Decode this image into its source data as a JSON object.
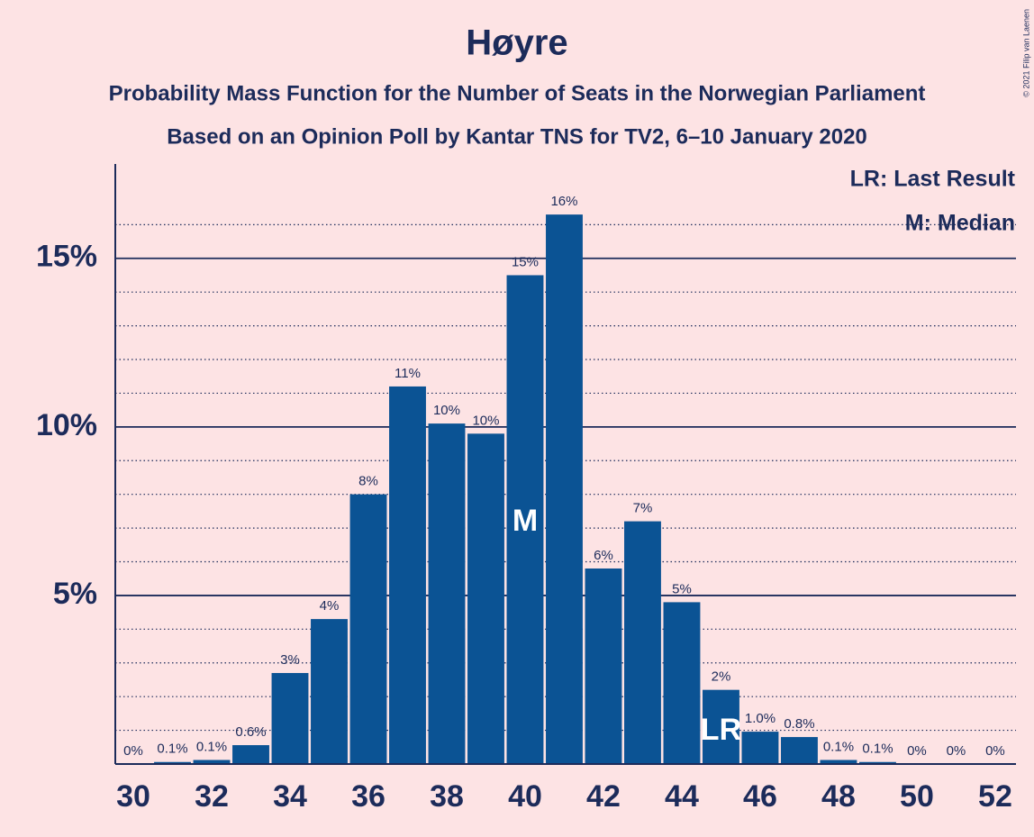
{
  "chart_data": {
    "type": "bar",
    "title": "Høyre",
    "subtitle": [
      "Probability Mass Function for the Number of Seats in the Norwegian Parliament",
      "Based on an Opinion Poll by Kantar TNS for TV2, 6–10 January 2020"
    ],
    "copyright": "© 2021 Filip van Laenen",
    "legend": [
      "LR: Last Result",
      "M: Median"
    ],
    "x": [
      30,
      31,
      32,
      33,
      34,
      35,
      36,
      37,
      38,
      39,
      40,
      41,
      42,
      43,
      44,
      45,
      46,
      47,
      48,
      49,
      50,
      51,
      52
    ],
    "values": [
      0,
      0.06,
      0.12,
      0.56,
      2.7,
      4.3,
      8.0,
      11.2,
      10.1,
      9.8,
      14.5,
      16.3,
      5.8,
      7.2,
      4.8,
      2.2,
      0.96,
      0.8,
      0.12,
      0.06,
      0,
      0,
      0
    ],
    "value_labels": [
      "0%",
      "0.1%",
      "0.1%",
      "0.6%",
      "3%",
      "4%",
      "8%",
      "11%",
      "10%",
      "10%",
      "15%",
      "16%",
      "6%",
      "7%",
      "5%",
      "2%",
      "1.0%",
      "0.8%",
      "0.1%",
      "0.1%",
      "0%",
      "0%",
      "0%"
    ],
    "color": "#0b5394",
    "xlim": [
      29.54,
      52.53
    ],
    "xticks": [
      30,
      32,
      34,
      36,
      38,
      40,
      42,
      44,
      46,
      48,
      50,
      52
    ],
    "ylim": [
      0,
      17.8
    ],
    "yticks": [
      {
        "value": 5,
        "label": "5%"
      },
      {
        "value": 10,
        "label": "10%"
      },
      {
        "value": 15,
        "label": "15%"
      }
    ],
    "minor_yticks": [
      1,
      2,
      3,
      4,
      6,
      7,
      8,
      9,
      11,
      12,
      13,
      14,
      16
    ],
    "median": {
      "x": 40,
      "label": "M"
    },
    "last_result": {
      "x": 45,
      "label": "LR"
    }
  }
}
